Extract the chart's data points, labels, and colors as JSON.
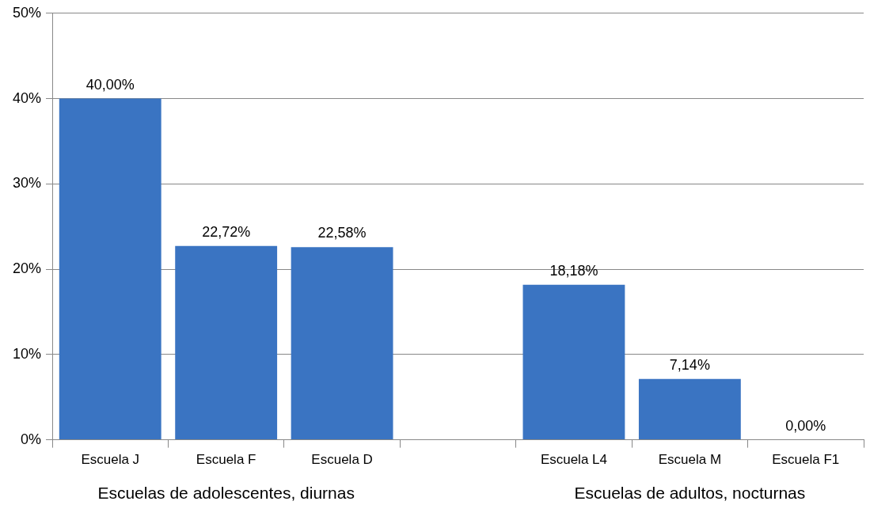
{
  "chart_data": {
    "type": "bar",
    "categories": [
      "Escuela J",
      "Escuela F",
      "Escuela D",
      null,
      "Escuela L4",
      "Escuela M",
      "Escuela F1"
    ],
    "values": [
      40,
      22.72,
      22.58,
      null,
      18.18,
      7.14,
      0
    ],
    "value_labels": [
      "40,00%",
      "22,72%",
      "22,58%",
      null,
      "18,18%",
      "7,14%",
      "0,00%"
    ],
    "color": "#3a74c2",
    "ylim": [
      0,
      50
    ],
    "yticks": [
      {
        "value": 0,
        "label": "0%"
      },
      {
        "value": 10,
        "label": "10%"
      },
      {
        "value": 20,
        "label": "20%"
      },
      {
        "value": 30,
        "label": "30%"
      },
      {
        "value": 40,
        "label": "40%"
      },
      {
        "value": 50,
        "label": "50%"
      }
    ],
    "grid": "y",
    "legend": false,
    "annotations": [
      "Escuelas de adolescentes, diurnas",
      "Escuelas de adultos, nocturnas"
    ]
  }
}
